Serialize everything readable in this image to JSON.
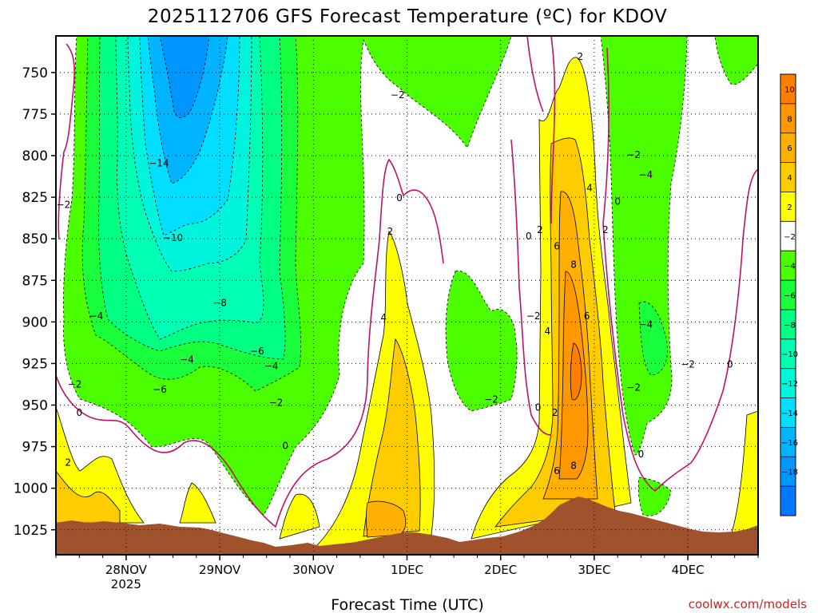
{
  "title": "2025112706 GFS Forecast Temperature (ºC) for KDOV",
  "xlabel": "Forecast Time (UTC)",
  "credit": "coolwx.com/models",
  "chart_data": {
    "type": "heatmap",
    "title": "2025112706 GFS Forecast Temperature (ºC) for KDOV",
    "xlabel": "Forecast Time (UTC)",
    "ylabel": "",
    "y_axis": {
      "ticks": [
        750,
        775,
        800,
        825,
        850,
        875,
        900,
        925,
        950,
        975,
        1000,
        1025
      ],
      "range": [
        728,
        1040
      ],
      "inverted": true
    },
    "x_axis": {
      "ticks": [
        "28NOV\n2025",
        "29NOV",
        "30NOV",
        "1DEC",
        "2DEC",
        "3DEC",
        "4DEC"
      ],
      "tick_labels": [
        {
          "line1": "28NOV",
          "line2": "2025"
        },
        {
          "line1": "29NOV",
          "line2": ""
        },
        {
          "line1": "30NOV",
          "line2": ""
        },
        {
          "line1": "1DEC",
          "line2": ""
        },
        {
          "line1": "2DEC",
          "line2": ""
        },
        {
          "line1": "3DEC",
          "line2": ""
        },
        {
          "line1": "4DEC",
          "line2": ""
        }
      ],
      "range_days": [
        -0.75,
        6.75
      ]
    },
    "grid": true,
    "colorbar": {
      "ticks": [
        "10",
        "8",
        "6",
        "4",
        "2",
        "−2",
        "−4",
        "−6",
        "−8",
        "−10",
        "−12",
        "−14",
        "−16",
        "−18"
      ],
      "bands": [
        {
          "lo": 10,
          "hi": 12,
          "color": "#ff7f00"
        },
        {
          "lo": 8,
          "hi": 10,
          "color": "#ff9800"
        },
        {
          "lo": 6,
          "hi": 8,
          "color": "#ffb000"
        },
        {
          "lo": 4,
          "hi": 6,
          "color": "#ffcc00"
        },
        {
          "lo": 2,
          "hi": 4,
          "color": "#ffff00"
        },
        {
          "lo": -2,
          "hi": 2,
          "color": "#ffffff"
        },
        {
          "lo": -4,
          "hi": -2,
          "color": "#4cff00"
        },
        {
          "lo": -6,
          "hi": -4,
          "color": "#19ff3c"
        },
        {
          "lo": -8,
          "hi": -6,
          "color": "#00ff82"
        },
        {
          "lo": -10,
          "hi": -8,
          "color": "#00ffb4"
        },
        {
          "lo": -12,
          "hi": -10,
          "color": "#00f5dc"
        },
        {
          "lo": -14,
          "hi": -12,
          "color": "#00dfff"
        },
        {
          "lo": -16,
          "hi": -14,
          "color": "#00b4ff"
        },
        {
          "lo": -18,
          "hi": -16,
          "color": "#0096ff"
        },
        {
          "lo": -20,
          "hi": -18,
          "color": "#0078ff"
        }
      ]
    },
    "contour_labels": [
      {
        "x": -0.67,
        "y": 830,
        "t": "−2"
      },
      {
        "x": -0.32,
        "y": 897,
        "t": "−4"
      },
      {
        "x": -0.55,
        "y": 938,
        "t": "−2"
      },
      {
        "x": -0.5,
        "y": 955,
        "t": "0"
      },
      {
        "x": -0.62,
        "y": 985,
        "t": "2"
      },
      {
        "x": 0.35,
        "y": 805,
        "t": "−14"
      },
      {
        "x": 0.5,
        "y": 850,
        "t": "−10"
      },
      {
        "x": 1.0,
        "y": 889,
        "t": "−8"
      },
      {
        "x": 1.4,
        "y": 918,
        "t": "−6"
      },
      {
        "x": 1.55,
        "y": 927,
        "t": "−4"
      },
      {
        "x": 0.65,
        "y": 923,
        "t": "−4"
      },
      {
        "x": 0.36,
        "y": 941,
        "t": "−6"
      },
      {
        "x": 1.6,
        "y": 949,
        "t": "−2"
      },
      {
        "x": 1.7,
        "y": 975,
        "t": "0"
      },
      {
        "x": 2.9,
        "y": 764,
        "t": "−2"
      },
      {
        "x": 2.92,
        "y": 826,
        "t": "0"
      },
      {
        "x": 2.82,
        "y": 846,
        "t": "2"
      },
      {
        "x": 2.75,
        "y": 898,
        "t": "4"
      },
      {
        "x": 3.9,
        "y": 947,
        "t": "−2"
      },
      {
        "x": 4.35,
        "y": 897,
        "t": "−2"
      },
      {
        "x": 4.4,
        "y": 952,
        "t": "0"
      },
      {
        "x": 4.3,
        "y": 849,
        "t": "0"
      },
      {
        "x": 4.42,
        "y": 845,
        "t": "2"
      },
      {
        "x": 4.6,
        "y": 855,
        "t": "6"
      },
      {
        "x": 4.5,
        "y": 906,
        "t": "4"
      },
      {
        "x": 4.58,
        "y": 955,
        "t": "2"
      },
      {
        "x": 4.78,
        "y": 866,
        "t": "8"
      },
      {
        "x": 4.92,
        "y": 897,
        "t": "6"
      },
      {
        "x": 4.78,
        "y": 987,
        "t": "8"
      },
      {
        "x": 4.6,
        "y": 990,
        "t": "6"
      },
      {
        "x": 4.95,
        "y": 820,
        "t": "4"
      },
      {
        "x": 5.12,
        "y": 845,
        "t": "2"
      },
      {
        "x": 5.25,
        "y": 828,
        "t": "0"
      },
      {
        "x": 5.42,
        "y": 800,
        "t": "−2"
      },
      {
        "x": 5.55,
        "y": 812,
        "t": "−4"
      },
      {
        "x": 5.55,
        "y": 902,
        "t": "−4"
      },
      {
        "x": 5.42,
        "y": 940,
        "t": "−2"
      },
      {
        "x": 5.5,
        "y": 980,
        "t": "0"
      },
      {
        "x": 6.0,
        "y": 926,
        "t": "−2"
      },
      {
        "x": 6.45,
        "y": 926,
        "t": "0"
      },
      {
        "x": 4.85,
        "y": 741,
        "t": "2"
      }
    ]
  }
}
